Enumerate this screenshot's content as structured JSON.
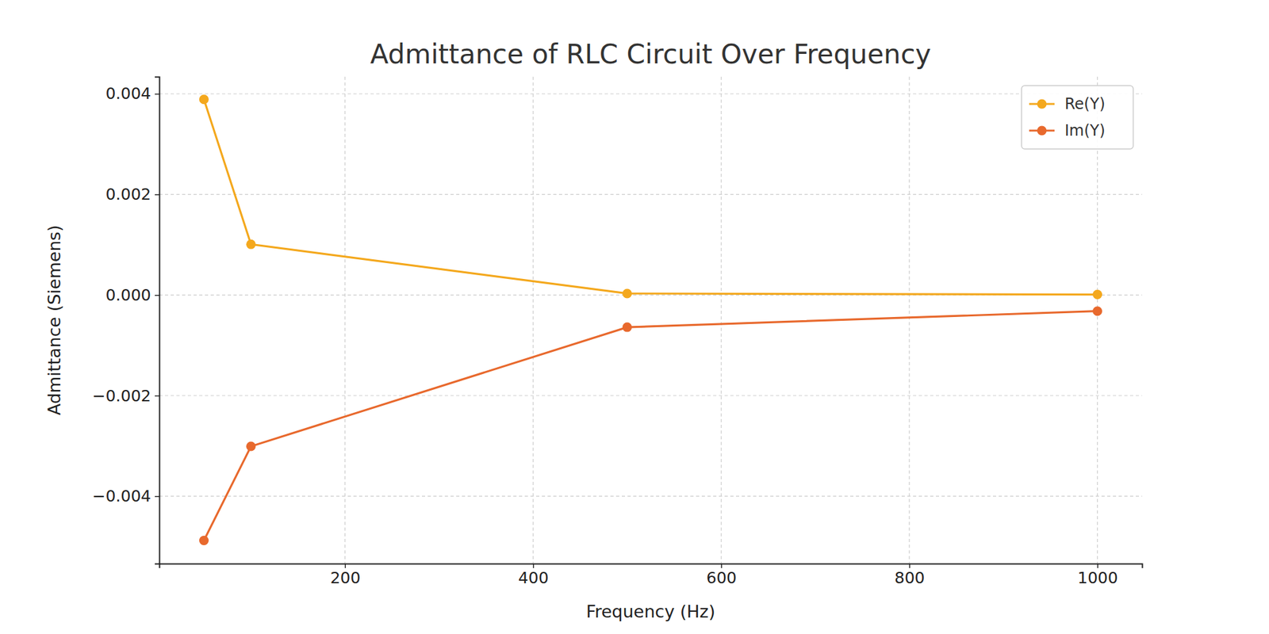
{
  "chart_data": {
    "type": "line",
    "title": "Admittance of RLC Circuit Over Frequency",
    "x_label": "Frequency (Hz)",
    "y_label": "Admittance (Siemens)",
    "x": [
      50,
      100,
      500,
      1000
    ],
    "series": [
      {
        "name": "Re(Y)",
        "color": "#f4a81d",
        "marker": "circle",
        "line_style": "solid",
        "values": [
          0.00389,
          0.001008,
          3e-05,
          1e-05
        ]
      },
      {
        "name": "Im(Y)",
        "color": "#e8692d",
        "marker": "circle",
        "line_style": "solid",
        "values": [
          -0.00488,
          -0.003008,
          -0.00064,
          -0.00032
        ]
      }
    ],
    "xlim": [
      2.5,
      1047.5
    ],
    "xticks": [
      200,
      400,
      600,
      800,
      1000
    ],
    "ylim": [
      -0.00534,
      0.00434
    ],
    "yticks": [
      {
        "value": -0.004,
        "label": "−0.004"
      },
      {
        "value": -0.002,
        "label": "−0.002"
      },
      {
        "value": 0,
        "label": "0.000"
      },
      {
        "value": 0.002,
        "label": "0.002"
      },
      {
        "value": 0.004,
        "label": "0.004"
      }
    ],
    "grid": true,
    "legend": "upper right"
  }
}
